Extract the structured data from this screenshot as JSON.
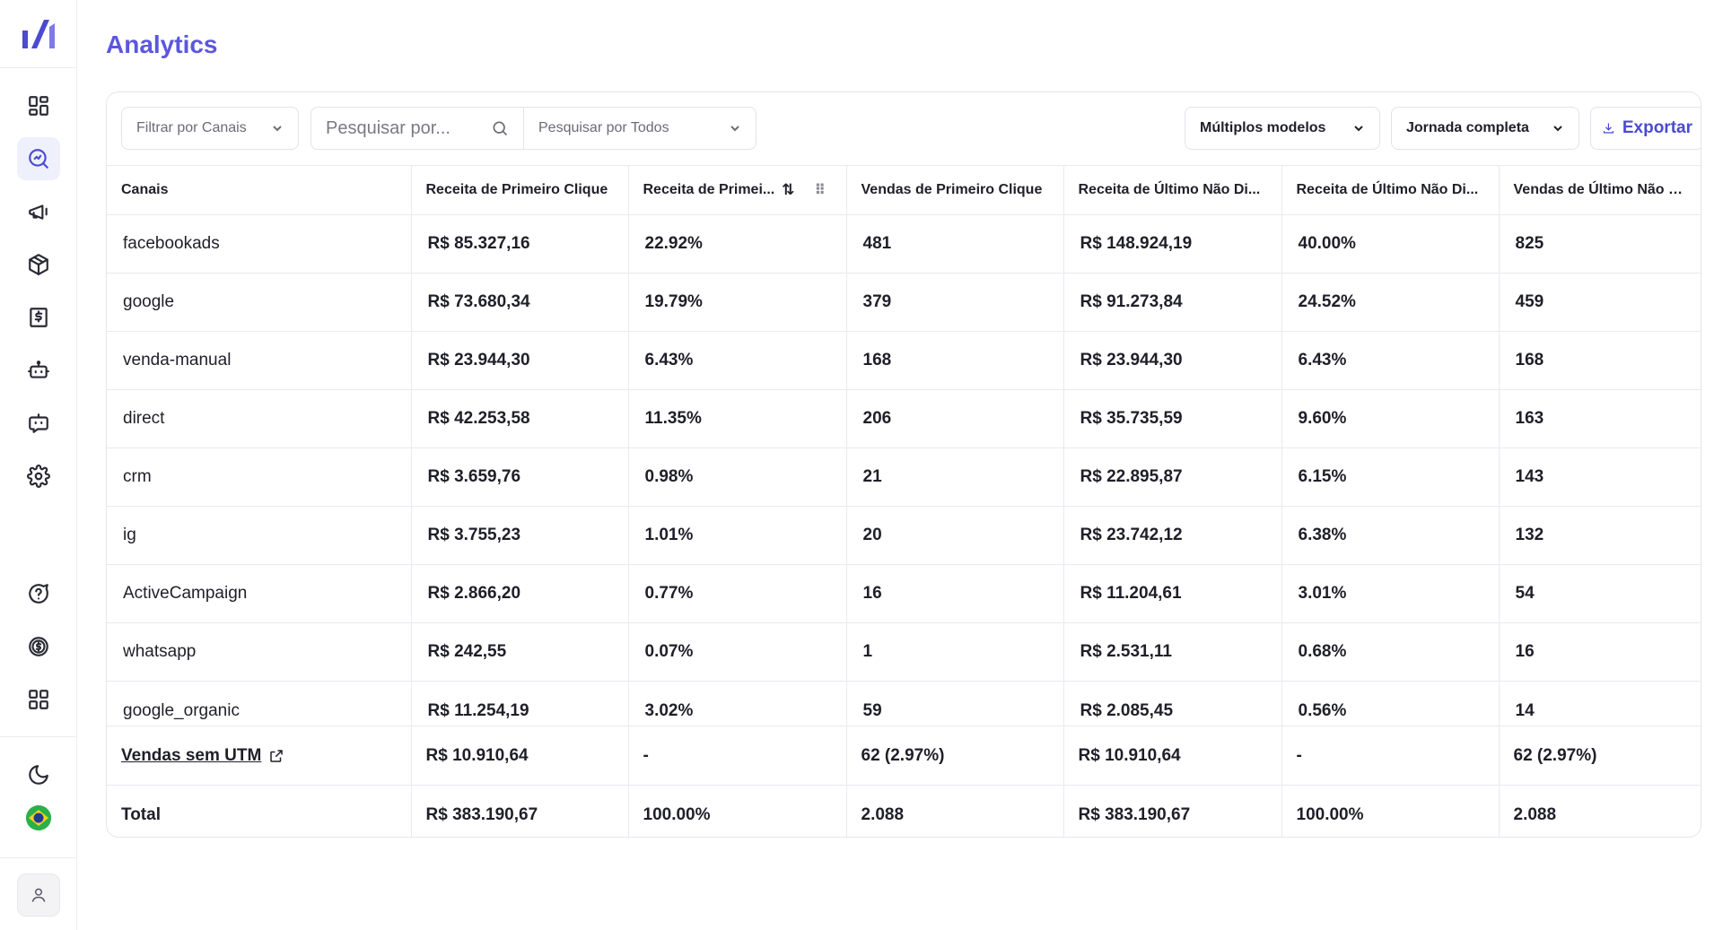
{
  "page": {
    "title": "Analytics"
  },
  "toolbar": {
    "channel_filter": "Filtrar por Canais",
    "search_placeholder": "Pesquisar por...",
    "search_scope": "Pesquisar por Todos",
    "models": "Múltiplos modelos",
    "journey": "Jornada completa",
    "export": "Exportar"
  },
  "table": {
    "headers": [
      "Canais",
      "Receita de Primeiro Clique",
      "Receita de Primei...",
      "Vendas de Primeiro Clique",
      "Receita de Último Não Di...",
      "Receita de Último Não Di...",
      "Vendas de Último Não D..."
    ],
    "rows": [
      [
        "facebookads",
        "R$ 85.327,16",
        "22.92%",
        "481",
        "R$ 148.924,19",
        "40.00%",
        "825"
      ],
      [
        "google",
        "R$ 73.680,34",
        "19.79%",
        "379",
        "R$ 91.273,84",
        "24.52%",
        "459"
      ],
      [
        "venda-manual",
        "R$ 23.944,30",
        "6.43%",
        "168",
        "R$ 23.944,30",
        "6.43%",
        "168"
      ],
      [
        "direct",
        "R$ 42.253,58",
        "11.35%",
        "206",
        "R$ 35.735,59",
        "9.60%",
        "163"
      ],
      [
        "crm",
        "R$ 3.659,76",
        "0.98%",
        "21",
        "R$ 22.895,87",
        "6.15%",
        "143"
      ],
      [
        "ig",
        "R$ 3.755,23",
        "1.01%",
        "20",
        "R$ 23.742,12",
        "6.38%",
        "132"
      ],
      [
        "ActiveCampaign",
        "R$ 2.866,20",
        "0.77%",
        "16",
        "R$ 11.204,61",
        "3.01%",
        "54"
      ],
      [
        "whatsapp",
        "R$ 242,55",
        "0.07%",
        "1",
        "R$ 2.531,11",
        "0.68%",
        "16"
      ],
      [
        "google_organic",
        "R$ 11.254,19",
        "3.02%",
        "59",
        "R$ 2.085,45",
        "0.56%",
        "14"
      ]
    ],
    "no_utm": [
      "Vendas sem UTM",
      "R$ 10.910,64",
      "-",
      "62 (2.97%)",
      "R$ 10.910,64",
      "-",
      "62 (2.97%)"
    ],
    "total": [
      "Total",
      "R$ 383.190,67",
      "100.00%",
      "2.088",
      "R$ 383.190,67",
      "100.00%",
      "2.088"
    ]
  },
  "colors": {
    "accent": "#5b57dd",
    "flag_green": "#2bb04a"
  }
}
